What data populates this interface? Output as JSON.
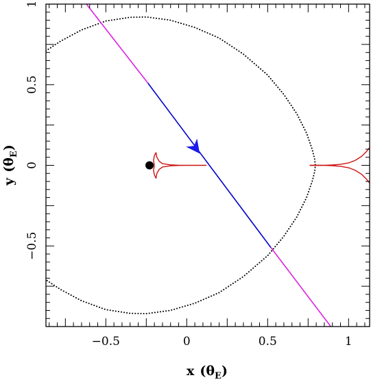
{
  "chart_data": {
    "type": "line",
    "title": "",
    "xlabel": "x (θ_E)",
    "ylabel": "y (θ_E)",
    "xlabel_main": "x",
    "xlabel_unit": "θ",
    "xlabel_sub": "E",
    "ylabel_main": "y",
    "ylabel_unit": "θ",
    "ylabel_sub": "E",
    "xlim": [
      -0.87,
      1.13
    ],
    "ylim": [
      -1.0,
      1.0
    ],
    "x_ticks": [
      {
        "value": -0.5,
        "label": "−0.5"
      },
      {
        "value": 0,
        "label": "0"
      },
      {
        "value": 0.5,
        "label": "0.5"
      },
      {
        "value": 1,
        "label": "1"
      }
    ],
    "y_ticks": [
      {
        "value": -0.5,
        "label": "−0.5"
      },
      {
        "value": 0,
        "label": "0"
      },
      {
        "value": 0.5,
        "label": "0.5"
      },
      {
        "value": 1,
        "label": "1"
      }
    ],
    "grid": false,
    "legend": "none",
    "series": [
      {
        "kind": "dotted-curve",
        "color": "#000000",
        "points": [
          [
            -0.87,
            0.71
          ],
          [
            -0.78,
            0.77
          ],
          [
            -0.65,
            0.84
          ],
          [
            -0.5,
            0.895
          ],
          [
            -0.35,
            0.918
          ],
          [
            -0.25,
            0.92
          ],
          [
            -0.1,
            0.9
          ],
          [
            0.05,
            0.855
          ],
          [
            0.2,
            0.79
          ],
          [
            0.35,
            0.69
          ],
          [
            0.5,
            0.56
          ],
          [
            0.6,
            0.44
          ],
          [
            0.68,
            0.32
          ],
          [
            0.74,
            0.2
          ],
          [
            0.775,
            0.1
          ],
          [
            0.79,
            0.04
          ],
          [
            0.795,
            0.0
          ],
          [
            0.79,
            -0.04
          ],
          [
            0.775,
            -0.1
          ],
          [
            0.74,
            -0.2
          ],
          [
            0.68,
            -0.32
          ],
          [
            0.6,
            -0.44
          ],
          [
            0.5,
            -0.56
          ],
          [
            0.35,
            -0.69
          ],
          [
            0.2,
            -0.79
          ],
          [
            0.05,
            -0.855
          ],
          [
            -0.1,
            -0.9
          ],
          [
            -0.25,
            -0.92
          ],
          [
            -0.35,
            -0.918
          ],
          [
            -0.5,
            -0.895
          ],
          [
            -0.65,
            -0.84
          ],
          [
            -0.78,
            -0.77
          ],
          [
            -0.87,
            -0.71
          ]
        ]
      },
      {
        "kind": "trajectory-outer",
        "color": "#dd22dd",
        "segments": [
          [
            [
              -0.62,
              1.0
            ],
            [
              -0.24,
              0.51
            ]
          ],
          [
            [
              0.52,
              -0.51
            ],
            [
              0.89,
              -1.0
            ]
          ]
        ]
      },
      {
        "kind": "trajectory-inner",
        "color": "#0000cc",
        "segments": [
          [
            [
              -0.24,
              0.51
            ],
            [
              0.52,
              -0.51
            ]
          ]
        ]
      },
      {
        "kind": "caustic-left",
        "color": "#cc1111",
        "points": [
          [
            -0.19,
            0.08
          ],
          [
            -0.185,
            0.05
          ],
          [
            -0.17,
            0.025
          ],
          [
            -0.15,
            0.01
          ],
          [
            -0.1,
            0.003
          ],
          [
            -0.05,
            0.0008
          ],
          [
            0.0,
            0.0002
          ],
          [
            0.05,
            0.0
          ],
          [
            0.12,
            0.0
          ],
          [
            0.05,
            0.0
          ],
          [
            0.0,
            -0.0002
          ],
          [
            -0.05,
            -0.0008
          ],
          [
            -0.1,
            -0.003
          ],
          [
            -0.15,
            -0.01
          ],
          [
            -0.17,
            -0.025
          ],
          [
            -0.185,
            -0.05
          ],
          [
            -0.19,
            -0.08
          ],
          [
            -0.2,
            -0.06
          ],
          [
            -0.205,
            -0.03
          ],
          [
            -0.2,
            0.0
          ],
          [
            -0.205,
            0.03
          ],
          [
            -0.2,
            0.06
          ],
          [
            -0.19,
            0.08
          ]
        ]
      },
      {
        "kind": "caustic-right",
        "color": "#cc1111",
        "points": [
          [
            0.76,
            0.0
          ],
          [
            0.8,
            0.0
          ],
          [
            0.85,
            0.0006
          ],
          [
            0.9,
            0.002
          ],
          [
            0.95,
            0.006
          ],
          [
            1.0,
            0.015
          ],
          [
            1.04,
            0.03
          ],
          [
            1.08,
            0.055
          ],
          [
            1.11,
            0.085
          ],
          [
            1.13,
            0.11
          ]
        ],
        "mirror": true
      }
    ],
    "markers": [
      {
        "kind": "lens",
        "x": -0.23,
        "y": 0.0,
        "color": "#000000"
      },
      {
        "kind": "arrow",
        "x": 0.06,
        "y": 0.1,
        "color": "#1a1aee",
        "direction": "along-trajectory"
      }
    ]
  }
}
